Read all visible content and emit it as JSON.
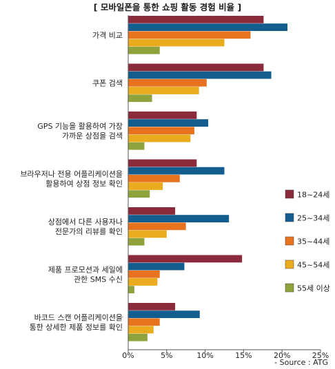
{
  "chart_data": {
    "type": "bar",
    "orientation": "horizontal",
    "title": "[ 모바일폰을 통한 쇼핑 활동 경험 비율 ]",
    "source": "- Source : ATG",
    "categories": [
      [
        "가격 비교"
      ],
      [
        "쿠폰 검색"
      ],
      [
        "GPS 기능을 활용하여 가장",
        "가까운 상점을 검색"
      ],
      [
        "브라우저나 전용 어플리케이션을",
        "활용하여 상점 정보 확인"
      ],
      [
        "상점에서 다른 사용자나",
        "전문가의 리뷰를 확인"
      ],
      [
        "제품 프로모션과 세일에",
        "관한 SMS 수신"
      ],
      [
        "바코드 스캔 어플리케이션을",
        "통한 상세한 제품 정보를 확인"
      ]
    ],
    "series": [
      {
        "name": "18~24세",
        "color": "#8b2a3a",
        "values": [
          17.6,
          17.6,
          8.9,
          8.9,
          6.1,
          14.8,
          6.1
        ]
      },
      {
        "name": "25~34세",
        "color": "#145e8f",
        "values": [
          20.7,
          18.6,
          10.4,
          12.5,
          13.1,
          7.3,
          9.3
        ]
      },
      {
        "name": "35~44세",
        "color": "#e8731e",
        "values": [
          15.9,
          10.2,
          8.6,
          6.7,
          7.5,
          4.1,
          4.1
        ]
      },
      {
        "name": "45~54세",
        "color": "#ebab1e",
        "values": [
          12.5,
          9.2,
          8.1,
          4.5,
          5.0,
          3.8,
          3.3
        ]
      },
      {
        "name": "55세 이상",
        "color": "#8ea33b",
        "values": [
          4.1,
          3.1,
          2.1,
          2.8,
          2.1,
          0.8,
          2.5
        ]
      }
    ],
    "x_ticks": [
      "0%",
      "5%",
      "10%",
      "15%",
      "20%",
      "25%"
    ],
    "xlim": [
      0,
      25
    ],
    "grid": false,
    "legend_position": "right"
  }
}
